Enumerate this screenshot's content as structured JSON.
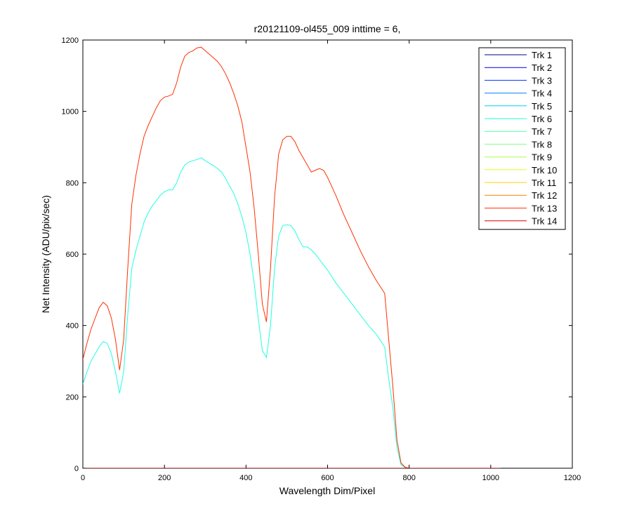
{
  "chart_data": {
    "type": "line",
    "title": "r20121109-ol455_009 inttime = 6,",
    "xlabel": "Wavelength Dim/Pixel",
    "ylabel": "Net Intensity (ADU/pix/sec)",
    "xlim": [
      0,
      1200
    ],
    "ylim": [
      0,
      1200
    ],
    "xticks": [
      0,
      200,
      400,
      600,
      800,
      1000,
      1200
    ],
    "yticks": [
      0,
      200,
      400,
      600,
      800,
      1000,
      1200
    ],
    "grid": false,
    "legend_position": "top-right",
    "series": [
      {
        "name": "Trk 1",
        "color": "#00008f",
        "x": [
          0,
          1024
        ],
        "y": [
          0,
          0
        ]
      },
      {
        "name": "Trk 2",
        "color": "#0000df",
        "x": [
          0,
          1024
        ],
        "y": [
          0,
          0
        ]
      },
      {
        "name": "Trk 3",
        "color": "#0030ff",
        "x": [
          0,
          1024
        ],
        "y": [
          0,
          0
        ]
      },
      {
        "name": "Trk 4",
        "color": "#0080ff",
        "x": [
          0,
          1024
        ],
        "y": [
          0,
          0
        ]
      },
      {
        "name": "Trk 5",
        "color": "#00cfff",
        "x": [
          0,
          1024
        ],
        "y": [
          0,
          0
        ]
      },
      {
        "name": "Trk 6",
        "color": "#20ffdf",
        "x": [
          0,
          10,
          20,
          30,
          40,
          50,
          60,
          70,
          80,
          90,
          100,
          110,
          120,
          130,
          140,
          150,
          160,
          170,
          180,
          190,
          200,
          210,
          220,
          230,
          240,
          250,
          260,
          270,
          280,
          290,
          300,
          310,
          320,
          330,
          340,
          350,
          360,
          370,
          380,
          390,
          400,
          410,
          420,
          430,
          440,
          450,
          460,
          470,
          480,
          490,
          500,
          510,
          520,
          530,
          540,
          550,
          560,
          570,
          580,
          590,
          600,
          620,
          640,
          660,
          680,
          700,
          720,
          740,
          750,
          760,
          770,
          780,
          790,
          800,
          850,
          900,
          950,
          1000,
          1024
        ],
        "y": [
          235,
          270,
          300,
          320,
          340,
          355,
          350,
          320,
          270,
          210,
          270,
          430,
          560,
          610,
          650,
          690,
          715,
          735,
          750,
          765,
          775,
          780,
          780,
          800,
          830,
          850,
          858,
          862,
          865,
          870,
          862,
          855,
          848,
          840,
          830,
          812,
          790,
          770,
          740,
          705,
          660,
          600,
          520,
          420,
          330,
          310,
          400,
          560,
          650,
          680,
          682,
          680,
          665,
          640,
          620,
          620,
          612,
          600,
          585,
          570,
          555,
          520,
          490,
          460,
          430,
          400,
          375,
          340,
          250,
          170,
          60,
          10,
          2,
          0,
          0,
          0,
          0,
          0,
          0
        ]
      },
      {
        "name": "Trk 7",
        "color": "#50ffaf",
        "x": [
          0,
          1024
        ],
        "y": [
          0,
          0
        ]
      },
      {
        "name": "Trk 8",
        "color": "#80ff80",
        "x": [
          0,
          1024
        ],
        "y": [
          0,
          0
        ]
      },
      {
        "name": "Trk 9",
        "color": "#afff50",
        "x": [
          0,
          1024
        ],
        "y": [
          0,
          0
        ]
      },
      {
        "name": "Trk 10",
        "color": "#dfff20",
        "x": [
          0,
          1024
        ],
        "y": [
          0,
          0
        ]
      },
      {
        "name": "Trk 11",
        "color": "#ffcf00",
        "x": [
          0,
          1024
        ],
        "y": [
          0,
          0
        ]
      },
      {
        "name": "Trk 12",
        "color": "#ff8000",
        "x": [
          0,
          1024
        ],
        "y": [
          0,
          0
        ]
      },
      {
        "name": "Trk 13",
        "color": "#ff3000",
        "x": [
          0,
          10,
          20,
          30,
          40,
          50,
          60,
          70,
          80,
          90,
          100,
          110,
          120,
          130,
          140,
          150,
          160,
          170,
          180,
          190,
          200,
          210,
          220,
          230,
          240,
          250,
          260,
          270,
          280,
          290,
          300,
          310,
          320,
          330,
          340,
          350,
          360,
          370,
          380,
          390,
          400,
          410,
          420,
          430,
          440,
          450,
          460,
          470,
          480,
          490,
          500,
          510,
          520,
          530,
          540,
          550,
          560,
          570,
          580,
          590,
          600,
          620,
          640,
          660,
          680,
          700,
          720,
          740,
          750,
          760,
          770,
          780,
          790,
          800,
          850,
          900,
          950,
          1000,
          1024
        ],
        "y": [
          305,
          350,
          390,
          420,
          450,
          465,
          455,
          420,
          360,
          275,
          360,
          560,
          740,
          820,
          880,
          930,
          960,
          985,
          1010,
          1030,
          1040,
          1043,
          1048,
          1080,
          1125,
          1155,
          1165,
          1170,
          1178,
          1180,
          1170,
          1160,
          1150,
          1140,
          1125,
          1105,
          1080,
          1050,
          1015,
          970,
          900,
          830,
          730,
          600,
          460,
          410,
          560,
          760,
          880,
          920,
          930,
          930,
          915,
          890,
          870,
          850,
          830,
          835,
          840,
          835,
          815,
          765,
          710,
          660,
          610,
          565,
          525,
          490,
          360,
          230,
          80,
          15,
          3,
          0,
          0,
          0,
          0,
          0,
          0
        ]
      },
      {
        "name": "Trk 14",
        "color": "#df0000",
        "x": [
          0,
          1024
        ],
        "y": [
          0,
          0
        ]
      }
    ]
  }
}
